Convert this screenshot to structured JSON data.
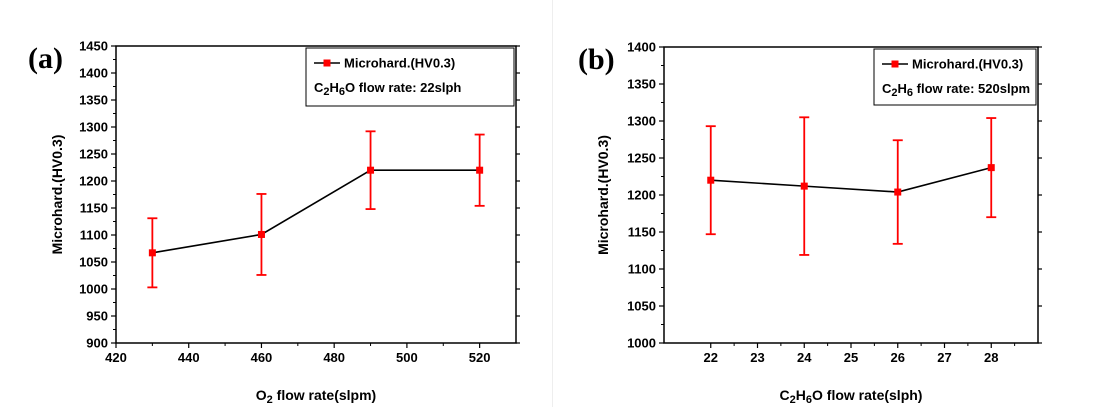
{
  "colors": {
    "line": "#000000",
    "marker": "#ff0000",
    "error_bar": "#ff0000"
  },
  "chart_data": [
    {
      "id": "a",
      "type": "line",
      "panel_label": "(a)",
      "xlabel": {
        "parts": [
          {
            "text": "O",
            "sub": false
          },
          {
            "text": "2",
            "sub": true
          },
          {
            "text": " flow rate(slpm)",
            "sub": false
          }
        ]
      },
      "ylabel": "Microhard.(HV0.3)",
      "xlim": [
        420,
        530
      ],
      "ylim": [
        900,
        1450
      ],
      "xticks": [
        420,
        440,
        460,
        480,
        500,
        520
      ],
      "yticks": [
        900,
        950,
        1000,
        1050,
        1100,
        1150,
        1200,
        1250,
        1300,
        1350,
        1400,
        1450
      ],
      "legend_placement": "top-right",
      "legend": {
        "series_label": "Microhard.(HV0.3)",
        "condition": {
          "parts": [
            {
              "text": "C",
              "sub": false
            },
            {
              "text": "2",
              "sub": true
            },
            {
              "text": "H",
              "sub": false
            },
            {
              "text": "6",
              "sub": true
            },
            {
              "text": "O flow rate: 22slph",
              "sub": false
            }
          ]
        }
      },
      "series": [
        {
          "name": "Microhard.(HV0.3)",
          "x": [
            430,
            460,
            490,
            520
          ],
          "y": [
            1067,
            1101,
            1220,
            1220
          ],
          "error": [
            64,
            75,
            72,
            66
          ]
        }
      ]
    },
    {
      "id": "b",
      "type": "line",
      "panel_label": "(b)",
      "xlabel": {
        "parts": [
          {
            "text": "C",
            "sub": false
          },
          {
            "text": "2",
            "sub": true
          },
          {
            "text": "H",
            "sub": false
          },
          {
            "text": "6",
            "sub": true
          },
          {
            "text": "O flow rate(slph)",
            "sub": false
          }
        ]
      },
      "ylabel": "Microhard.(HV0.3)",
      "xlim": [
        21,
        29
      ],
      "ylim": [
        1000,
        1400
      ],
      "xticks": [
        22,
        23,
        24,
        25,
        26,
        27,
        28
      ],
      "yticks": [
        1000,
        1050,
        1100,
        1150,
        1200,
        1250,
        1300,
        1350,
        1400
      ],
      "legend_placement": "top-right",
      "legend": {
        "series_label": "Microhard.(HV0.3)",
        "condition": {
          "parts": [
            {
              "text": "C",
              "sub": false
            },
            {
              "text": "2",
              "sub": true
            },
            {
              "text": "H",
              "sub": false
            },
            {
              "text": "6",
              "sub": true
            },
            {
              "text": " flow rate: 520slpm",
              "sub": false
            }
          ]
        }
      },
      "series": [
        {
          "name": "Microhard.(HV0.3)",
          "x": [
            22,
            24,
            26,
            28
          ],
          "y": [
            1220,
            1212,
            1204,
            1237
          ],
          "error": [
            73,
            93,
            70,
            67
          ]
        }
      ]
    }
  ]
}
